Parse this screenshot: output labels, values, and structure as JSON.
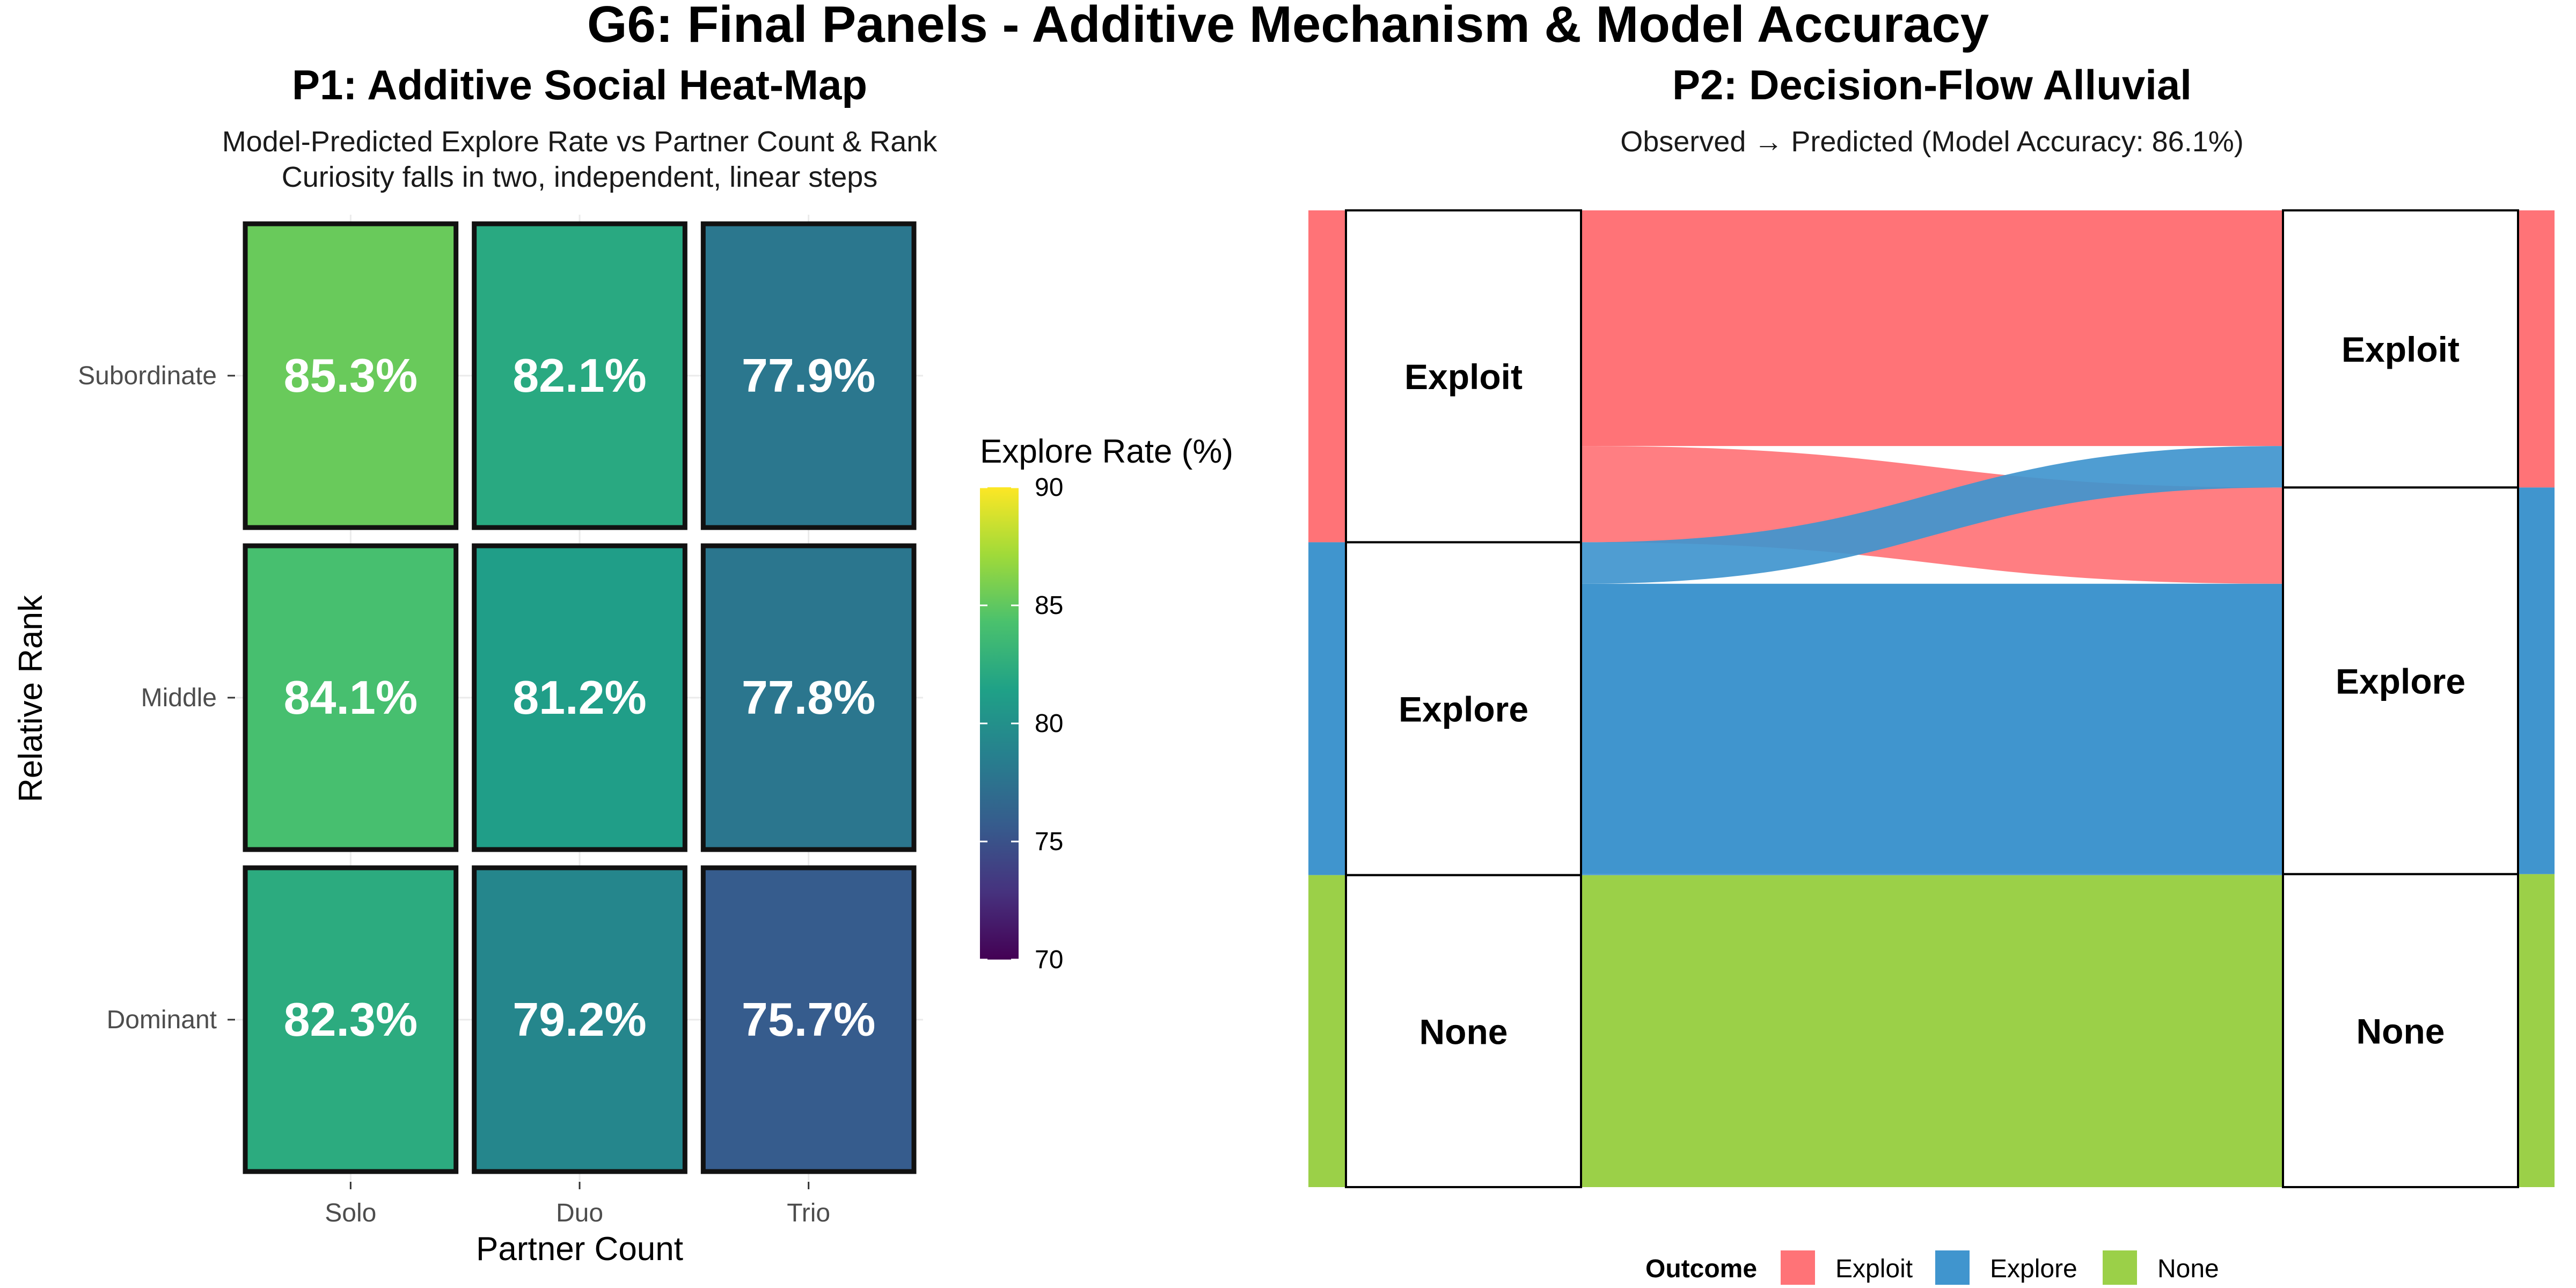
{
  "title": "G6: Final Panels - Additive Mechanism & Model Accuracy",
  "colors": {
    "exploit": "#FF7377",
    "explore": "#4095CE",
    "none": "#9BD048",
    "viridis": [
      "#440154",
      "#46327e",
      "#365c8d",
      "#277f8e",
      "#1fa187",
      "#4ac16d",
      "#a0da39",
      "#fde725"
    ]
  },
  "chart_data": [
    {
      "type": "heatmap",
      "title": "P1: Additive Social Heat-Map",
      "subtitle": [
        "Model-Predicted Explore Rate vs Partner Count & Rank",
        "Curiosity falls in two, independent, linear steps"
      ],
      "xlabel": "Partner Count",
      "ylabel": "Relative Rank",
      "x_categories": [
        "Solo",
        "Duo",
        "Trio"
      ],
      "y_categories": [
        "Subordinate",
        "Middle",
        "Dominant"
      ],
      "values": [
        [
          85.3,
          82.1,
          77.9
        ],
        [
          84.1,
          81.2,
          77.8
        ],
        [
          82.3,
          79.2,
          75.7
        ]
      ],
      "cell_labels": [
        [
          "85.3%",
          "82.1%",
          "77.9%"
        ],
        [
          "84.1%",
          "81.2%",
          "77.8%"
        ],
        [
          "82.3%",
          "79.2%",
          "75.7%"
        ]
      ],
      "colorbar": {
        "title": "Explore Rate (%)",
        "range": [
          70,
          90
        ],
        "ticks": [
          70,
          75,
          80,
          85,
          90
        ],
        "tick_labels": [
          "70",
          "75",
          "80",
          "85",
          "90"
        ]
      }
    },
    {
      "type": "alluvial",
      "title": "P2: Decision-Flow Alluvial",
      "subtitle": "Observed → Predicted (Model Accuracy: 86.1%)",
      "left_strata": [
        "Exploit",
        "Explore",
        "None"
      ],
      "right_strata": [
        "Exploit",
        "Explore",
        "None"
      ],
      "flows": [
        {
          "from": "Exploit",
          "to": "Exploit",
          "value": 71
        },
        {
          "from": "Exploit",
          "to": "Explore",
          "value": 29
        },
        {
          "from": "Explore",
          "to": "Exploit",
          "value": 12.5
        },
        {
          "from": "Explore",
          "to": "Explore",
          "value": 87.5
        },
        {
          "from": "Explore",
          "to": "None",
          "value": 0.3
        },
        {
          "from": "None",
          "to": "None",
          "value": 94
        }
      ],
      "legend": {
        "title": "Outcome",
        "entries": [
          "Exploit",
          "Explore",
          "None"
        ],
        "position": "bottom"
      }
    }
  ]
}
